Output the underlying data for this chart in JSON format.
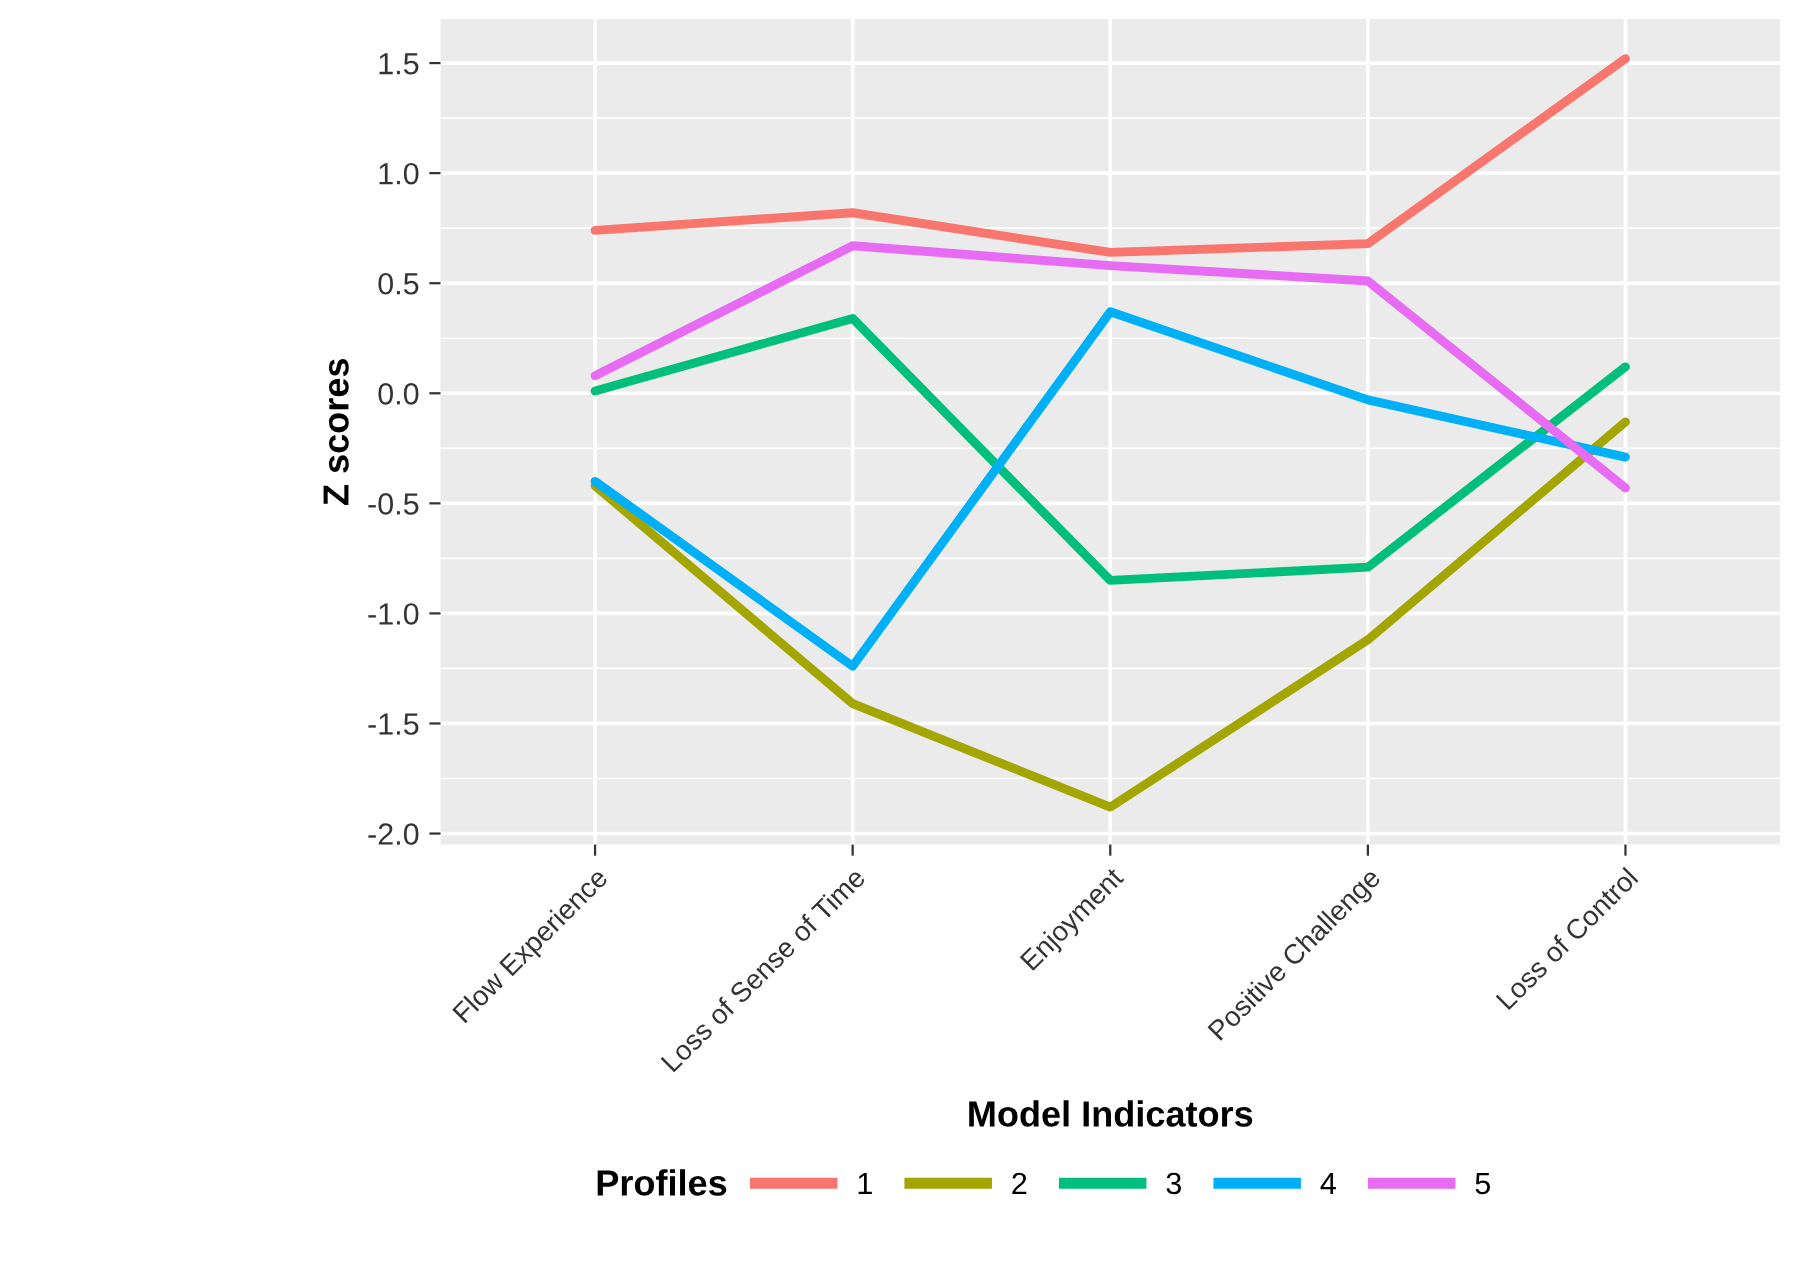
{
  "chart_data": {
    "type": "line",
    "xlabel": "Model Indicators",
    "ylabel": "Z scores",
    "legend_title": "Profiles",
    "categories": [
      "Flow Experience",
      "Loss of Sense of Time",
      "Enjoyment",
      "Positive Challenge",
      "Loss of Control"
    ],
    "series": [
      {
        "name": "1",
        "color": "#f8766d",
        "values": [
          0.74,
          0.82,
          0.64,
          0.68,
          1.52
        ]
      },
      {
        "name": "2",
        "color": "#a3a500",
        "values": [
          -0.42,
          -1.41,
          -1.88,
          -1.12,
          -0.13
        ]
      },
      {
        "name": "3",
        "color": "#00bf7d",
        "values": [
          0.01,
          0.34,
          -0.85,
          -0.79,
          0.12
        ]
      },
      {
        "name": "4",
        "color": "#00b0f6",
        "values": [
          -0.4,
          -1.24,
          0.37,
          -0.03,
          -0.29
        ]
      },
      {
        "name": "5",
        "color": "#e76bf3",
        "values": [
          0.08,
          0.67,
          0.58,
          0.51,
          -0.43
        ]
      }
    ],
    "ylim": [
      -2.05,
      1.7
    ],
    "yticks": [
      {
        "value": 1.5,
        "label": "1.5"
      },
      {
        "value": 1.0,
        "label": "1.0"
      },
      {
        "value": 0.5,
        "label": "0.5"
      },
      {
        "value": 0.0,
        "label": "0.0"
      },
      {
        "value": -0.5,
        "label": "-0.5"
      },
      {
        "value": -1.0,
        "label": "-1.0"
      },
      {
        "value": -1.5,
        "label": "-1.5"
      },
      {
        "value": -2.0,
        "label": "-2.0"
      }
    ],
    "grid": true,
    "legend": "bottom",
    "marker": "none",
    "line_style": "solid"
  }
}
